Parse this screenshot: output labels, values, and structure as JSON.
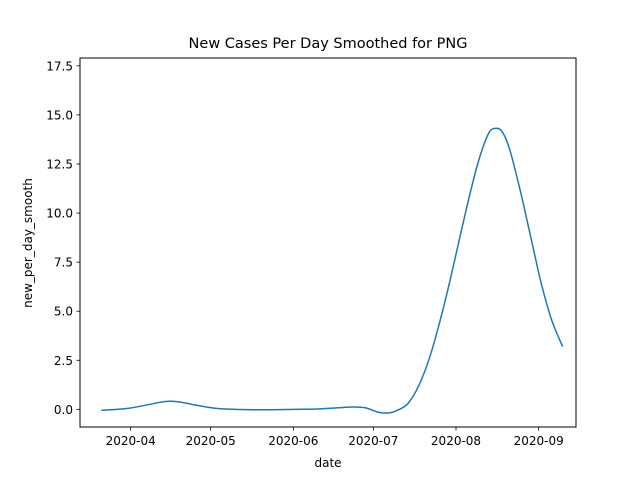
{
  "chart_data": {
    "type": "line",
    "title": "New Cases Per Day Smoothed for PNG",
    "xlabel": "date",
    "ylabel": "new_per_day_smooth",
    "xlim": [
      "2020-03-13",
      "2020-09-15"
    ],
    "ylim": [
      -0.9,
      17.9
    ],
    "x_ticks": [
      "2020-04",
      "2020-05",
      "2020-06",
      "2020-07",
      "2020-08",
      "2020-09"
    ],
    "y_ticks": [
      "0.0",
      "2.5",
      "5.0",
      "7.5",
      "10.0",
      "12.5",
      "15.0",
      "17.5"
    ],
    "grid": false,
    "legend": "none",
    "series": [
      {
        "color": "#1f77b4",
        "x": [
          "2020-03-21",
          "2020-03-31",
          "2020-04-08",
          "2020-04-14",
          "2020-04-19",
          "2020-04-26",
          "2020-05-03",
          "2020-05-10",
          "2020-05-20",
          "2020-06-01",
          "2020-06-10",
          "2020-06-18",
          "2020-06-23",
          "2020-06-28",
          "2020-07-03",
          "2020-07-07",
          "2020-07-10",
          "2020-07-14",
          "2020-07-18",
          "2020-07-22",
          "2020-07-26",
          "2020-07-30",
          "2020-08-03",
          "2020-08-07",
          "2020-08-10",
          "2020-08-13",
          "2020-08-15",
          "2020-08-18",
          "2020-08-21",
          "2020-08-25",
          "2020-08-29",
          "2020-09-02",
          "2020-09-06",
          "2020-09-10"
        ],
        "y": [
          -0.05,
          0.05,
          0.25,
          0.4,
          0.38,
          0.2,
          0.05,
          0.0,
          -0.02,
          0.0,
          0.02,
          0.08,
          0.12,
          0.08,
          -0.15,
          -0.18,
          -0.05,
          0.3,
          1.2,
          2.6,
          4.5,
          6.7,
          9.1,
          11.4,
          12.9,
          14.0,
          14.3,
          14.2,
          13.3,
          11.2,
          8.8,
          6.4,
          4.5,
          3.2
        ]
      }
    ]
  }
}
